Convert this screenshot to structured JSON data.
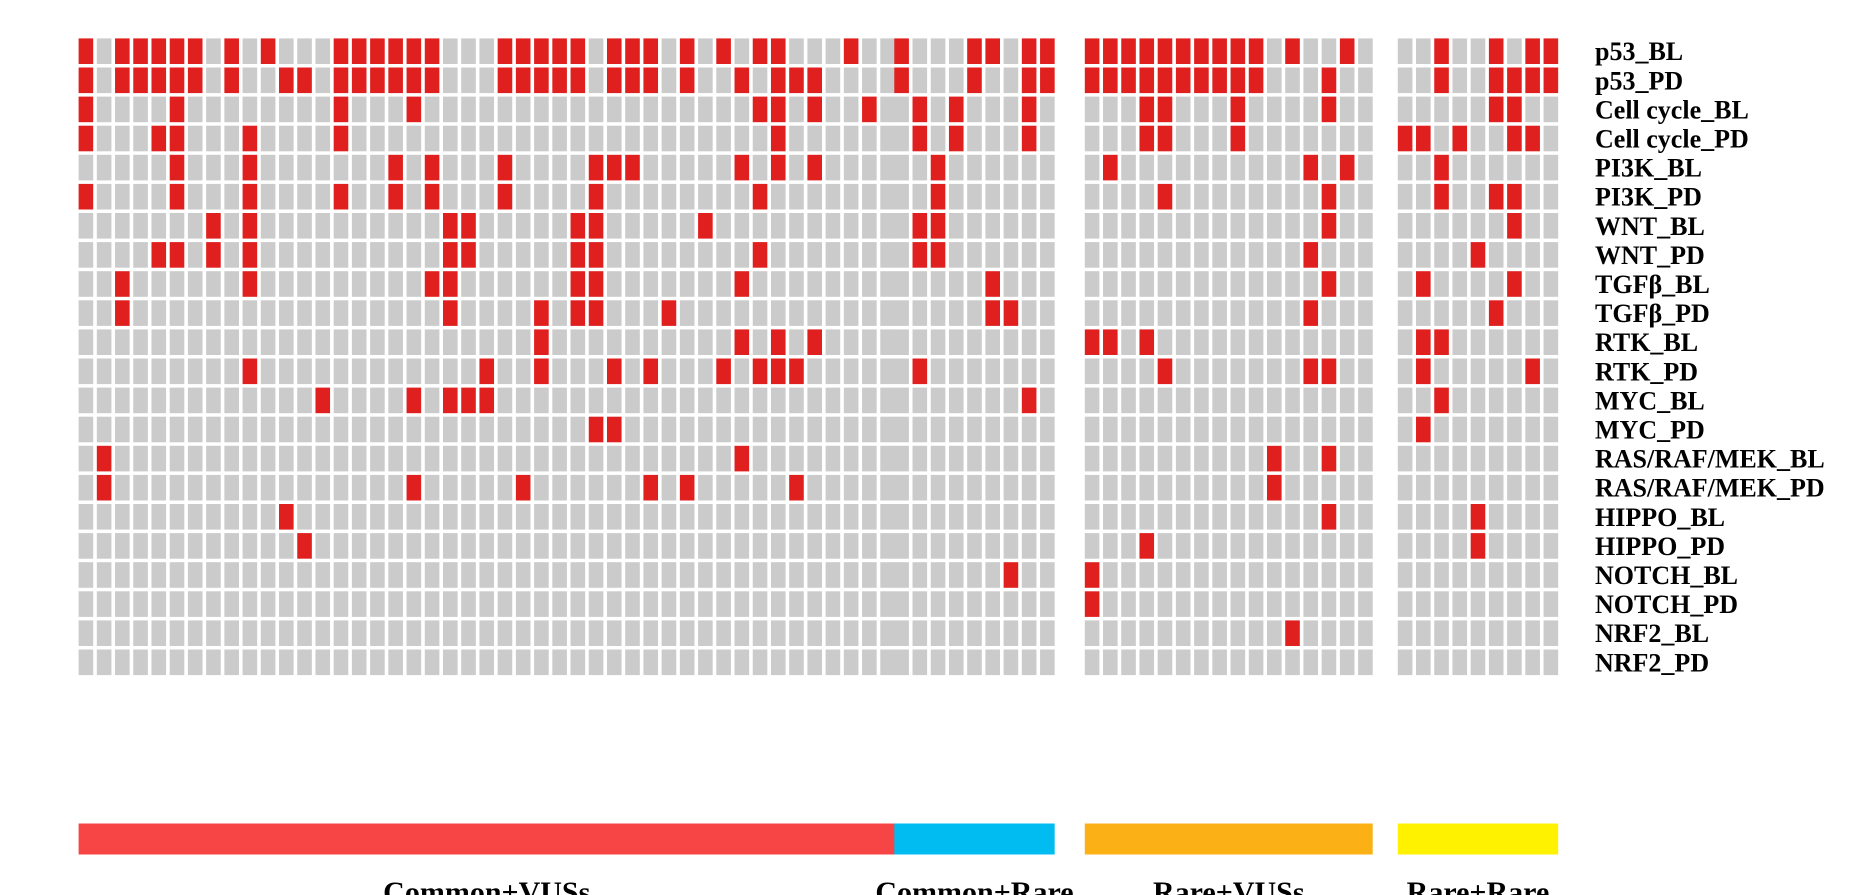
{
  "chart_data": {
    "type": "heatmap",
    "rows": [
      "p53_BL",
      "p53_PD",
      "Cell cycle_BL",
      "Cell cycle_PD",
      "PI3K_BL",
      "PI3K_PD",
      "WNT_BL",
      "WNT_PD",
      "TGFβ_BL",
      "TGFβ_PD",
      "RTK_BL",
      "RTK_PD",
      "MYC_BL",
      "MYC_PD",
      "RAS/RAF/MEK_BL",
      "RAS/RAF/MEK_PD",
      "HIPPO_BL",
      "HIPPO_PD",
      "NOTCH_BL",
      "NOTCH_PD",
      "NRF2_BL",
      "NRF2_PD"
    ],
    "groups": [
      {
        "name": "Common+VUSs",
        "color": "#f74545",
        "n_samples": 45,
        "altered": [
          [
            0,
            2,
            3,
            4,
            5,
            6,
            8,
            10,
            14,
            15,
            16,
            17,
            18,
            19,
            23,
            24,
            25,
            26,
            27,
            29,
            30,
            31,
            33,
            35,
            37,
            38,
            42
          ],
          [
            0,
            2,
            3,
            4,
            5,
            6,
            8,
            11,
            12,
            14,
            15,
            16,
            17,
            18,
            19,
            23,
            24,
            25,
            26,
            27,
            29,
            30,
            31,
            33,
            36,
            38,
            39,
            40
          ],
          [
            0,
            5,
            14,
            18,
            37,
            38,
            40,
            43
          ],
          [
            0,
            4,
            5,
            9,
            14,
            38
          ],
          [
            5,
            9,
            17,
            19,
            23,
            28,
            29,
            30,
            36,
            38,
            40
          ],
          [
            0,
            5,
            9,
            14,
            17,
            19,
            23,
            28,
            37
          ],
          [
            7,
            9,
            20,
            21,
            27,
            28,
            34
          ],
          [
            4,
            5,
            7,
            9,
            20,
            21,
            27,
            28,
            37
          ],
          [
            2,
            9,
            19,
            20,
            27,
            28,
            36
          ],
          [
            2,
            20,
            25,
            27,
            28,
            32
          ],
          [
            25,
            36,
            38,
            40
          ],
          [
            9,
            22,
            25,
            29,
            31,
            35,
            37,
            38,
            39
          ],
          [
            13,
            18,
            20,
            21,
            22
          ],
          [
            28,
            29
          ],
          [
            1,
            36
          ],
          [
            1,
            18,
            24,
            31,
            33,
            39
          ],
          [
            11
          ],
          [
            12
          ],
          [],
          [],
          [],
          []
        ]
      },
      {
        "name": "Common+Rare",
        "color": "#00bcf0",
        "n_samples": 9,
        "altered": [
          [
            0,
            4,
            5,
            7,
            8
          ],
          [
            0,
            4,
            7,
            8
          ],
          [
            1,
            3,
            7
          ],
          [
            1,
            3,
            7
          ],
          [
            2
          ],
          [
            2
          ],
          [
            1,
            2
          ],
          [
            1,
            2
          ],
          [
            5
          ],
          [
            5,
            6
          ],
          [],
          [
            1
          ],
          [
            7
          ],
          [],
          [],
          [],
          [],
          [],
          [
            6
          ],
          [],
          [],
          []
        ]
      },
      {
        "name": "Rare+VUSs",
        "color": "#fbb015",
        "n_samples": 16,
        "altered": [
          [
            0,
            1,
            2,
            3,
            4,
            5,
            6,
            7,
            8,
            9,
            11,
            14
          ],
          [
            0,
            1,
            2,
            3,
            4,
            5,
            6,
            7,
            8,
            9,
            13
          ],
          [
            3,
            4,
            8,
            13
          ],
          [
            3,
            4,
            8
          ],
          [
            1,
            12,
            14
          ],
          [
            4,
            13
          ],
          [
            13
          ],
          [
            12
          ],
          [
            13
          ],
          [
            12
          ],
          [
            0,
            1,
            3
          ],
          [
            4,
            12,
            13
          ],
          [],
          [],
          [
            10,
            13
          ],
          [
            10
          ],
          [
            13
          ],
          [
            3
          ],
          [
            0
          ],
          [
            0
          ],
          [
            11
          ],
          []
        ]
      },
      {
        "name": "Rare+Rare",
        "color": "#fff200",
        "n_samples": 9,
        "altered": [
          [
            2,
            5,
            7,
            8
          ],
          [
            2,
            5,
            6,
            7,
            8
          ],
          [
            5,
            6
          ],
          [
            0,
            1,
            3,
            6,
            7
          ],
          [
            2
          ],
          [
            2,
            5,
            6
          ],
          [
            6
          ],
          [
            4
          ],
          [
            1,
            6
          ],
          [
            5
          ],
          [
            1,
            2
          ],
          [
            1,
            7
          ],
          [
            2
          ],
          [
            1
          ],
          [],
          [],
          [
            4
          ],
          [
            4
          ],
          [],
          [],
          [],
          []
        ]
      }
    ],
    "colors": {
      "altered": "#e0201e",
      "unaltered": "#cbcbcb",
      "background": "#ffffff"
    },
    "legend": "none",
    "grid": false
  }
}
